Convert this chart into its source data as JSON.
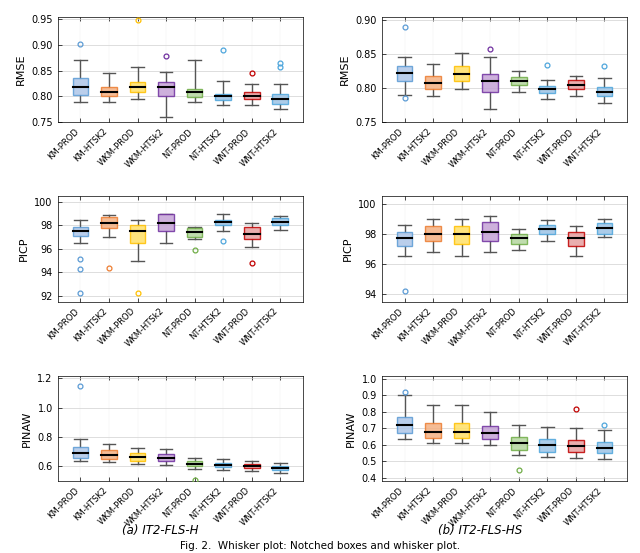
{
  "categories": [
    "KM-PROD",
    "KM-HTSK2",
    "WKM-PROD",
    "WKM-HTSk2",
    "NT-PROD",
    "NT-HTSK2",
    "WNT-PROD",
    "WNT-HTSK2"
  ],
  "colors": [
    "#5B9BD5",
    "#ED7D31",
    "#FFC000",
    "#7030A0",
    "#70AD47",
    "#4EA6DC",
    "#C00000",
    "#4EA6DC"
  ],
  "box_colors": [
    "#AEC6E8",
    "#F4B183",
    "#FFE066",
    "#C5A3D6",
    "#B5D6A0",
    "#9DC3E6",
    "#E6A0A0",
    "#9DC3E6"
  ],
  "rmse_a": {
    "ylim": [
      0.75,
      0.955
    ],
    "yticks": [
      0.75,
      0.8,
      0.85,
      0.9,
      0.95
    ],
    "ylabel": "RMSE",
    "data": [
      {
        "q1": 0.802,
        "median": 0.818,
        "q3": 0.835,
        "whislo": 0.79,
        "whishi": 0.87,
        "fliers_high": [
          0.902
        ],
        "fliers_low": []
      },
      {
        "q1": 0.8,
        "median": 0.808,
        "q3": 0.818,
        "whislo": 0.79,
        "whishi": 0.845,
        "fliers_high": [],
        "fliers_low": []
      },
      {
        "q1": 0.808,
        "median": 0.818,
        "q3": 0.828,
        "whislo": 0.795,
        "whishi": 0.858,
        "fliers_high": [
          0.948
        ],
        "fliers_low": []
      },
      {
        "q1": 0.8,
        "median": 0.818,
        "q3": 0.828,
        "whislo": 0.76,
        "whishi": 0.848,
        "fliers_high": [
          0.878
        ],
        "fliers_low": []
      },
      {
        "q1": 0.798,
        "median": 0.808,
        "q3": 0.815,
        "whislo": 0.79,
        "whishi": 0.87,
        "fliers_high": [],
        "fliers_low": []
      },
      {
        "q1": 0.793,
        "median": 0.8,
        "q3": 0.805,
        "whislo": 0.783,
        "whishi": 0.83,
        "fliers_high": [
          0.89
        ],
        "fliers_low": []
      },
      {
        "q1": 0.795,
        "median": 0.8,
        "q3": 0.808,
        "whislo": 0.783,
        "whishi": 0.825,
        "fliers_high": [
          0.845
        ],
        "fliers_low": []
      },
      {
        "q1": 0.785,
        "median": 0.795,
        "q3": 0.805,
        "whislo": 0.775,
        "whishi": 0.825,
        "fliers_high": [
          0.858,
          0.865
        ],
        "fliers_low": []
      }
    ]
  },
  "rmse_b": {
    "ylim": [
      0.75,
      0.905
    ],
    "yticks": [
      0.75,
      0.8,
      0.85,
      0.9
    ],
    "ylabel": "RMSE",
    "data": [
      {
        "q1": 0.81,
        "median": 0.822,
        "q3": 0.832,
        "whislo": 0.79,
        "whishi": 0.845,
        "fliers_high": [
          0.89
        ],
        "fliers_low": [
          0.785
        ]
      },
      {
        "q1": 0.798,
        "median": 0.808,
        "q3": 0.818,
        "whislo": 0.788,
        "whishi": 0.835,
        "fliers_high": [],
        "fliers_low": []
      },
      {
        "q1": 0.81,
        "median": 0.82,
        "q3": 0.832,
        "whislo": 0.798,
        "whishi": 0.852,
        "fliers_high": [],
        "fliers_low": []
      },
      {
        "q1": 0.795,
        "median": 0.81,
        "q3": 0.82,
        "whislo": 0.77,
        "whishi": 0.845,
        "fliers_high": [
          0.858
        ],
        "fliers_low": []
      },
      {
        "q1": 0.805,
        "median": 0.811,
        "q3": 0.816,
        "whislo": 0.795,
        "whishi": 0.825,
        "fliers_high": [],
        "fliers_low": []
      },
      {
        "q1": 0.793,
        "median": 0.798,
        "q3": 0.803,
        "whislo": 0.784,
        "whishi": 0.812,
        "fliers_high": [
          0.834
        ],
        "fliers_low": []
      },
      {
        "q1": 0.798,
        "median": 0.805,
        "q3": 0.812,
        "whislo": 0.788,
        "whishi": 0.818,
        "fliers_high": [],
        "fliers_low": []
      },
      {
        "q1": 0.788,
        "median": 0.795,
        "q3": 0.802,
        "whislo": 0.778,
        "whishi": 0.815,
        "fliers_high": [
          0.832
        ],
        "fliers_low": []
      }
    ]
  },
  "picp_a": {
    "ylim": [
      91.5,
      100.5
    ],
    "yticks": [
      92,
      94,
      96,
      98,
      100
    ],
    "ylabel": "PICP",
    "data": [
      {
        "q1": 97.1,
        "median": 97.5,
        "q3": 97.9,
        "whislo": 96.5,
        "whishi": 98.5,
        "fliers_high": [],
        "fliers_low": [
          95.1,
          94.3,
          92.2
        ]
      },
      {
        "q1": 97.8,
        "median": 98.2,
        "q3": 98.7,
        "whislo": 97.0,
        "whishi": 98.9,
        "fliers_high": [],
        "fliers_low": [
          94.4
        ]
      },
      {
        "q1": 96.5,
        "median": 97.5,
        "q3": 98.0,
        "whislo": 95.0,
        "whishi": 98.5,
        "fliers_high": [],
        "fliers_low": [
          92.2
        ]
      },
      {
        "q1": 97.5,
        "median": 98.2,
        "q3": 99.0,
        "whislo": 96.5,
        "whishi": 99.0,
        "fliers_high": [],
        "fliers_low": []
      },
      {
        "q1": 97.0,
        "median": 97.4,
        "q3": 97.8,
        "whislo": 96.8,
        "whishi": 97.9,
        "fliers_high": [],
        "fliers_low": [
          95.9
        ]
      },
      {
        "q1": 98.0,
        "median": 98.3,
        "q3": 98.5,
        "whislo": 97.5,
        "whishi": 99.0,
        "fliers_high": [],
        "fliers_low": [
          96.7
        ]
      },
      {
        "q1": 96.8,
        "median": 97.3,
        "q3": 97.9,
        "whislo": 96.2,
        "whishi": 98.2,
        "fliers_high": [],
        "fliers_low": [
          94.8
        ]
      },
      {
        "q1": 98.0,
        "median": 98.3,
        "q3": 98.6,
        "whislo": 97.6,
        "whishi": 98.8,
        "fliers_high": [],
        "fliers_low": []
      }
    ]
  },
  "picp_b": {
    "ylim": [
      93.5,
      100.5
    ],
    "yticks": [
      94,
      96,
      98,
      100
    ],
    "ylabel": "PICP",
    "data": [
      {
        "q1": 97.2,
        "median": 97.7,
        "q3": 98.1,
        "whislo": 96.5,
        "whishi": 98.6,
        "fliers_high": [],
        "fliers_low": [
          94.2
        ]
      },
      {
        "q1": 97.5,
        "median": 98.0,
        "q3": 98.5,
        "whislo": 96.8,
        "whishi": 99.0,
        "fliers_high": [],
        "fliers_low": []
      },
      {
        "q1": 97.3,
        "median": 98.0,
        "q3": 98.5,
        "whislo": 96.5,
        "whishi": 99.0,
        "fliers_high": [],
        "fliers_low": []
      },
      {
        "q1": 97.5,
        "median": 98.1,
        "q3": 98.8,
        "whislo": 96.8,
        "whishi": 99.2,
        "fliers_high": [],
        "fliers_low": []
      },
      {
        "q1": 97.3,
        "median": 97.7,
        "q3": 98.0,
        "whislo": 96.9,
        "whishi": 98.3,
        "fliers_high": [],
        "fliers_low": []
      },
      {
        "q1": 98.0,
        "median": 98.3,
        "q3": 98.6,
        "whislo": 97.5,
        "whishi": 98.9,
        "fliers_high": [],
        "fliers_low": []
      },
      {
        "q1": 97.2,
        "median": 97.7,
        "q3": 98.1,
        "whislo": 96.5,
        "whishi": 98.5,
        "fliers_high": [],
        "fliers_low": []
      },
      {
        "q1": 98.0,
        "median": 98.4,
        "q3": 98.7,
        "whislo": 97.8,
        "whishi": 99.0,
        "fliers_high": [],
        "fliers_low": []
      }
    ]
  },
  "pinaw_a": {
    "ylim": [
      0.5,
      1.22
    ],
    "yticks": [
      0.6,
      0.8,
      1.0,
      1.2
    ],
    "ylabel": "PINAW",
    "data": [
      {
        "q1": 0.66,
        "median": 0.695,
        "q3": 0.73,
        "whislo": 0.635,
        "whishi": 0.79,
        "fliers_high": [
          1.15
        ],
        "fliers_low": []
      },
      {
        "q1": 0.65,
        "median": 0.68,
        "q3": 0.71,
        "whislo": 0.628,
        "whishi": 0.755,
        "fliers_high": [],
        "fliers_low": []
      },
      {
        "q1": 0.64,
        "median": 0.665,
        "q3": 0.695,
        "whislo": 0.615,
        "whishi": 0.728,
        "fliers_high": [],
        "fliers_low": []
      },
      {
        "q1": 0.638,
        "median": 0.66,
        "q3": 0.688,
        "whislo": 0.61,
        "whishi": 0.72,
        "fliers_high": [],
        "fliers_low": []
      },
      {
        "q1": 0.6,
        "median": 0.618,
        "q3": 0.638,
        "whislo": 0.582,
        "whishi": 0.66,
        "fliers_high": [],
        "fliers_low": [
          0.508
        ]
      },
      {
        "q1": 0.598,
        "median": 0.61,
        "q3": 0.625,
        "whislo": 0.578,
        "whishi": 0.648,
        "fliers_high": [],
        "fliers_low": []
      },
      {
        "q1": 0.588,
        "median": 0.6,
        "q3": 0.615,
        "whislo": 0.568,
        "whishi": 0.638,
        "fliers_high": [],
        "fliers_low": []
      },
      {
        "q1": 0.578,
        "median": 0.59,
        "q3": 0.605,
        "whislo": 0.558,
        "whishi": 0.625,
        "fliers_high": [],
        "fliers_low": []
      }
    ]
  },
  "pinaw_b": {
    "ylim": [
      0.38,
      1.02
    ],
    "yticks": [
      0.4,
      0.5,
      0.6,
      0.7,
      0.8,
      0.9,
      1.0
    ],
    "ylabel": "PINAW",
    "data": [
      {
        "q1": 0.67,
        "median": 0.72,
        "q3": 0.77,
        "whislo": 0.635,
        "whishi": 0.9,
        "fliers_high": [
          0.92
        ],
        "fliers_low": []
      },
      {
        "q1": 0.64,
        "median": 0.68,
        "q3": 0.73,
        "whislo": 0.608,
        "whishi": 0.84,
        "fliers_high": [],
        "fliers_low": []
      },
      {
        "q1": 0.64,
        "median": 0.68,
        "q3": 0.73,
        "whislo": 0.608,
        "whishi": 0.84,
        "fliers_high": [],
        "fliers_low": []
      },
      {
        "q1": 0.638,
        "median": 0.67,
        "q3": 0.715,
        "whislo": 0.6,
        "whishi": 0.8,
        "fliers_high": [],
        "fliers_low": []
      },
      {
        "q1": 0.568,
        "median": 0.608,
        "q3": 0.645,
        "whislo": 0.54,
        "whishi": 0.72,
        "fliers_high": [],
        "fliers_low": [
          0.45
        ]
      },
      {
        "q1": 0.558,
        "median": 0.6,
        "q3": 0.638,
        "whislo": 0.528,
        "whishi": 0.71,
        "fliers_high": [],
        "fliers_low": []
      },
      {
        "q1": 0.555,
        "median": 0.59,
        "q3": 0.628,
        "whislo": 0.52,
        "whishi": 0.7,
        "fliers_high": [
          0.82
        ],
        "fliers_low": []
      },
      {
        "q1": 0.548,
        "median": 0.582,
        "q3": 0.618,
        "whislo": 0.512,
        "whishi": 0.688,
        "fliers_high": [
          0.72
        ],
        "fliers_low": []
      }
    ]
  }
}
